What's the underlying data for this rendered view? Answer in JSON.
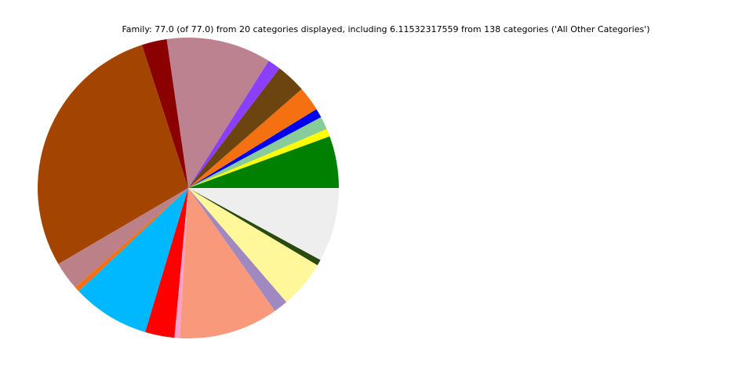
{
  "chart_data": {
    "type": "pie",
    "title": "Family: 77.0 (of 77.0) from 20 categories displayed, including 6.11532317559 from 138 categories ('All Other Categories')",
    "start_angle": 0,
    "direction": "counterclockwise",
    "values": [
      4.3,
      0.64,
      1.07,
      0.75,
      2.03,
      2.48,
      1.07,
      8.66,
      2.07,
      21.9,
      2.35,
      0.43,
      6.42,
      2.42,
      0.45,
      8.19,
      1.18,
      3.94,
      0.49,
      6.11532317559
    ],
    "colors": [
      "#008000",
      "#ffff00",
      "#88cc99",
      "#0000ee",
      "#f57010",
      "#6b4410",
      "#8a3ffc",
      "#bc8290",
      "#8b0000",
      "#a34500",
      "#bc8088",
      "#f57010",
      "#00b8ff",
      "#ff0000",
      "#f7a0c8",
      "#f7997a",
      "#a088c0",
      "#fff799",
      "#2a4a10",
      "#eeeeee"
    ]
  }
}
